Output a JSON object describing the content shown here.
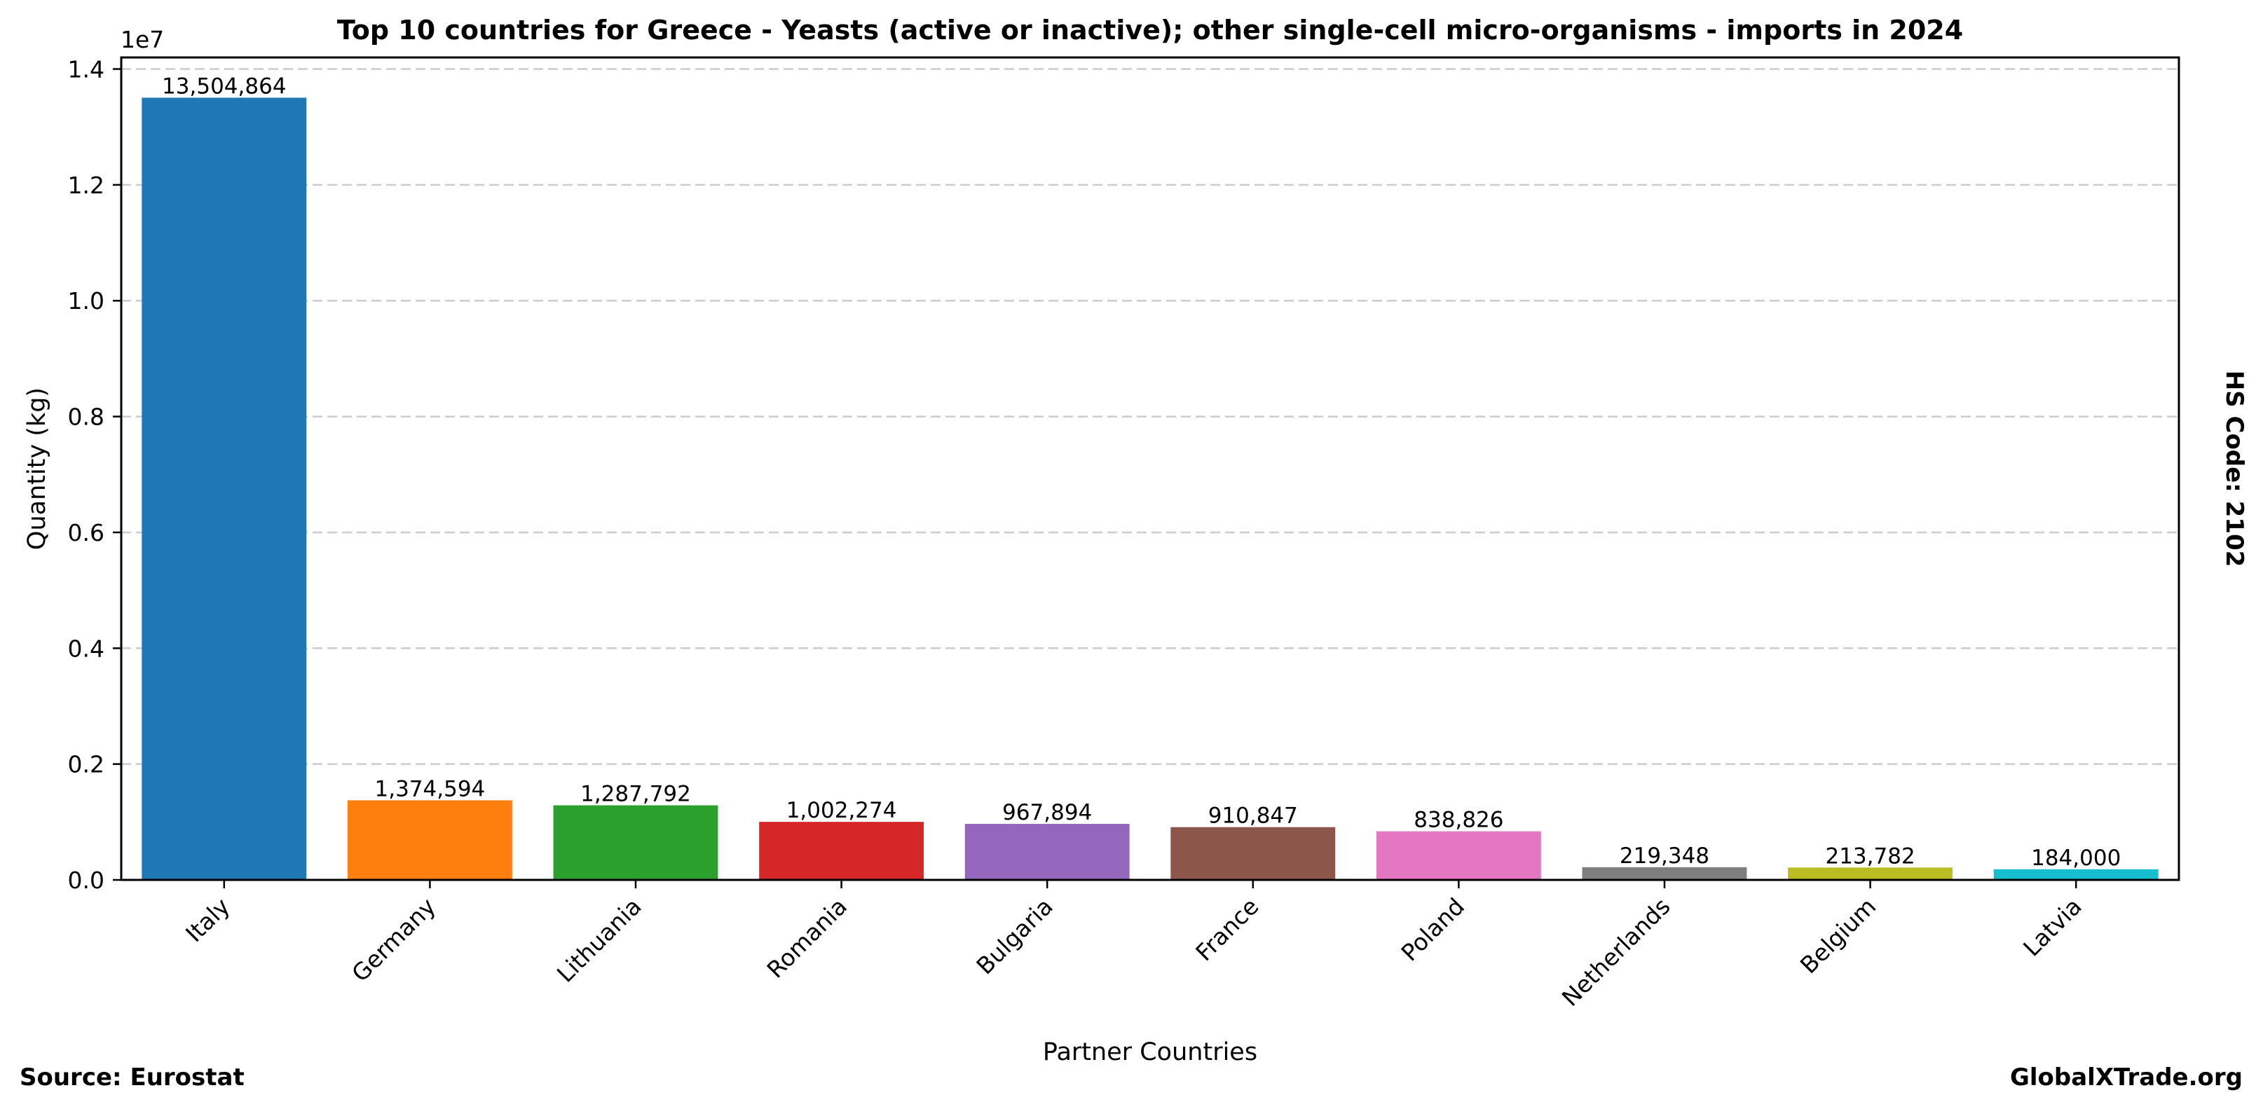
{
  "chart_data": {
    "type": "bar",
    "title": "Top 10 countries for Greece - Yeasts (active or inactive); other single-cell micro-organisms - imports in 2024",
    "xlabel": "Partner Countries",
    "ylabel": "Quantity (kg)",
    "y_offset_label": "1e7",
    "y_scale": 10000000,
    "ylim": [
      0,
      14200000
    ],
    "yticks": [
      0,
      2000000,
      4000000,
      6000000,
      8000000,
      10000000,
      12000000,
      14000000
    ],
    "ytick_labels": [
      "0.0",
      "0.2",
      "0.4",
      "0.6",
      "0.8",
      "1.0",
      "1.2",
      "1.4"
    ],
    "grid": "y-dashed",
    "categories": [
      "Italy",
      "Germany",
      "Lithuania",
      "Romania",
      "Bulgaria",
      "France",
      "Poland",
      "Netherlands",
      "Belgium",
      "Latvia"
    ],
    "values": [
      13504864,
      1374594,
      1287792,
      1002274,
      967894,
      910847,
      838826,
      219348,
      213782,
      184000
    ],
    "value_labels": [
      "13,504,864",
      "1,374,594",
      "1,287,792",
      "1,002,274",
      "967,894",
      "910,847",
      "838,826",
      "219,348",
      "213,782",
      "184,000"
    ],
    "colors": [
      "#1f77b4",
      "#ff7f0e",
      "#2ca02c",
      "#d62728",
      "#9467bd",
      "#8c564b",
      "#e377c2",
      "#7f7f7f",
      "#bcbd22",
      "#17becf"
    ],
    "grid_color": "#cccccc",
    "axis_color": "#000000"
  },
  "footer": {
    "source": "Source: Eurostat",
    "brand": "GlobalXTrade.org"
  },
  "side_label": "HS Code: 2102"
}
